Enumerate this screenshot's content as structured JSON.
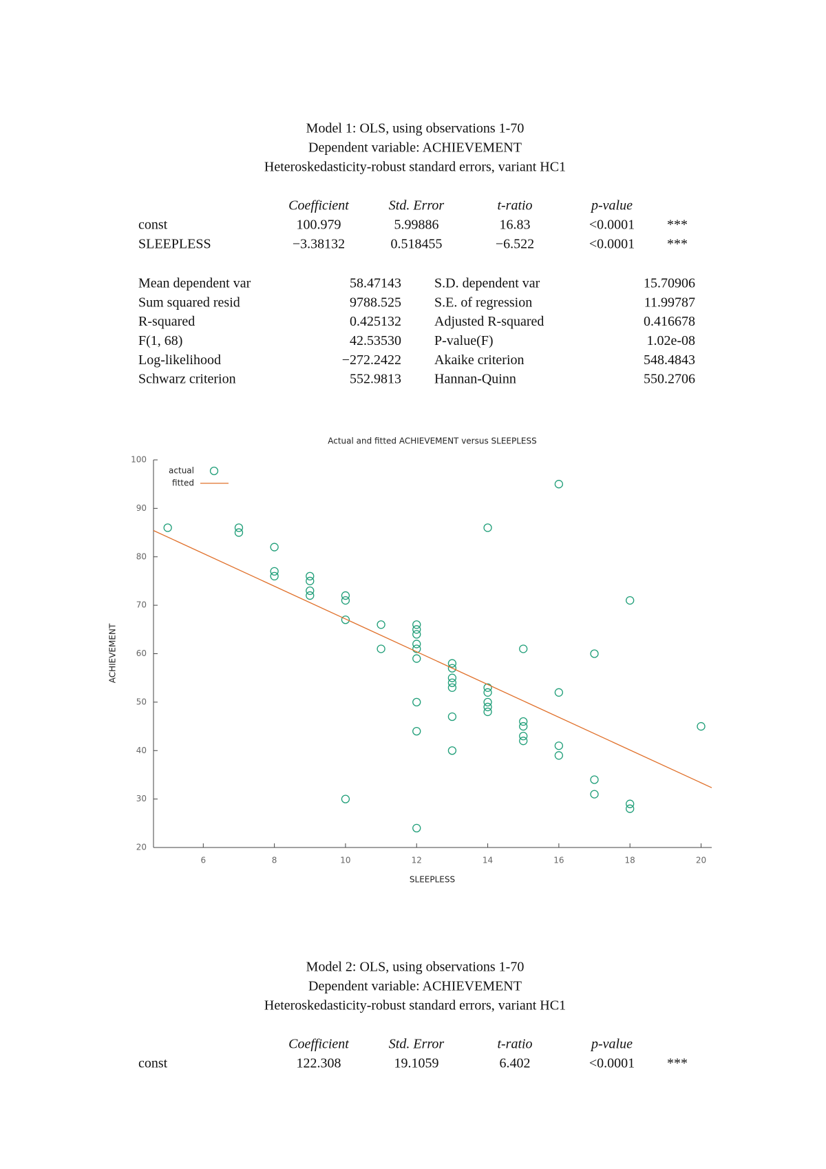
{
  "model1": {
    "title_lines": [
      "Model 1: OLS, using observations 1-70",
      "Dependent variable: ACHIEVEMENT",
      "Heteroskedasticity-robust standard errors, variant HC1"
    ],
    "columns": [
      "Coefficient",
      "Std. Error",
      "t-ratio",
      "p-value"
    ],
    "rows": [
      [
        "const",
        "100.979",
        "5.99886",
        "16.83",
        "<0.0001",
        "***"
      ],
      [
        "SLEEPLESS",
        "−3.38132",
        "0.518455",
        "−6.522",
        "<0.0001",
        "***"
      ]
    ],
    "stats": [
      [
        "Mean dependent var",
        "58.47143",
        "S.D. dependent var",
        "15.70906"
      ],
      [
        "Sum squared resid",
        "9788.525",
        "S.E. of regression",
        "11.99787"
      ],
      [
        "R-squared",
        "0.425132",
        "Adjusted R-squared",
        "0.416678"
      ],
      [
        "F(1, 68)",
        "42.53530",
        "P-value(F)",
        "1.02e-08"
      ],
      [
        "Log-likelihood",
        "−272.2422",
        "Akaike criterion",
        "548.4843"
      ],
      [
        "Schwarz criterion",
        "552.9813",
        "Hannan-Quinn",
        "550.2706"
      ]
    ]
  },
  "chart_data": {
    "type": "scatter",
    "title": "Actual and fitted ACHIEVEMENT versus SLEEPLESS",
    "x_label": "SLEEPLESS",
    "y_label": "ACHIEVEMENT",
    "xlim": [
      4.6,
      20.3
    ],
    "ylim": [
      20,
      100
    ],
    "xticks": [
      6,
      8,
      10,
      12,
      14,
      16,
      18,
      20
    ],
    "yticks": [
      20,
      30,
      40,
      50,
      60,
      70,
      80,
      90,
      100
    ],
    "legend": "top-left",
    "series": [
      {
        "name": "actual",
        "color": "#1f9e78",
        "x": [
          5,
          7,
          7,
          8,
          8,
          8,
          9,
          9,
          9,
          9,
          10,
          10,
          10,
          10,
          11,
          11,
          12,
          12,
          12,
          12,
          12,
          12,
          12,
          12,
          12,
          13,
          13,
          13,
          13,
          13,
          13,
          13,
          14,
          14,
          14,
          14,
          14,
          14,
          15,
          15,
          15,
          15,
          15,
          16,
          16,
          16,
          16,
          17,
          17,
          17,
          18,
          18,
          18,
          20
        ],
        "values": [
          86,
          86,
          85,
          82,
          77,
          76,
          76,
          75,
          73,
          72,
          72,
          71,
          67,
          30,
          66,
          61,
          66,
          65,
          64,
          62,
          61,
          59,
          50,
          44,
          24,
          58,
          57,
          55,
          54,
          53,
          47,
          40,
          86,
          53,
          52,
          50,
          49,
          48,
          61,
          46,
          45,
          43,
          42,
          95,
          52,
          41,
          39,
          60,
          34,
          31,
          71,
          29,
          28,
          45
        ]
      },
      {
        "name": "fitted",
        "color": "#e0702a",
        "x": [
          4.6,
          20.3
        ],
        "values": [
          85.42,
          32.34
        ]
      }
    ]
  },
  "model2": {
    "title_lines": [
      "Model 2: OLS, using observations 1-70",
      "Dependent variable: ACHIEVEMENT",
      "Heteroskedasticity-robust standard errors, variant HC1"
    ],
    "columns": [
      "Coefficient",
      "Std. Error",
      "t-ratio",
      "p-value"
    ],
    "rows": [
      [
        "const",
        "122.308",
        "19.1059",
        "6.402",
        "<0.0001",
        "***"
      ]
    ]
  }
}
